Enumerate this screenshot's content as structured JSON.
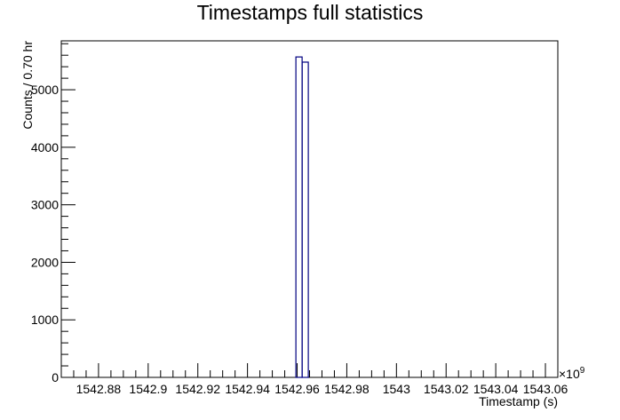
{
  "chart_data": {
    "type": "bar",
    "title": "Timestamps full statistics",
    "xlabel": "Timestamp (s)",
    "ylabel": "Counts / 0.70 hr",
    "x_multiplier_label": "×10",
    "x_multiplier_exponent": "9",
    "xlim": [
      1542.865,
      1543.065
    ],
    "ylim": [
      0,
      5850
    ],
    "x_ticks": [
      {
        "value": 1542.88,
        "label": "1542.88"
      },
      {
        "value": 1542.9,
        "label": "1542.9"
      },
      {
        "value": 1542.92,
        "label": "1542.92"
      },
      {
        "value": 1542.94,
        "label": "1542.94"
      },
      {
        "value": 1542.96,
        "label": "1542.96"
      },
      {
        "value": 1542.98,
        "label": "1542.98"
      },
      {
        "value": 1543.0,
        "label": "1543"
      },
      {
        "value": 1543.02,
        "label": "1543.02"
      },
      {
        "value": 1543.04,
        "label": "1543.04"
      },
      {
        "value": 1543.06,
        "label": "1543.06"
      }
    ],
    "y_ticks": [
      {
        "value": 0,
        "label": "0"
      },
      {
        "value": 1000,
        "label": "1000"
      },
      {
        "value": 2000,
        "label": "2000"
      },
      {
        "value": 3000,
        "label": "3000"
      },
      {
        "value": 4000,
        "label": "4000"
      },
      {
        "value": 5000,
        "label": "5000"
      }
    ],
    "bins": [
      {
        "x_low": 1542.9595,
        "x_high": 1542.962,
        "count": 5570
      },
      {
        "x_low": 1542.962,
        "x_high": 1542.9645,
        "count": 5480
      }
    ],
    "line_color": "#000080",
    "grid": false
  }
}
